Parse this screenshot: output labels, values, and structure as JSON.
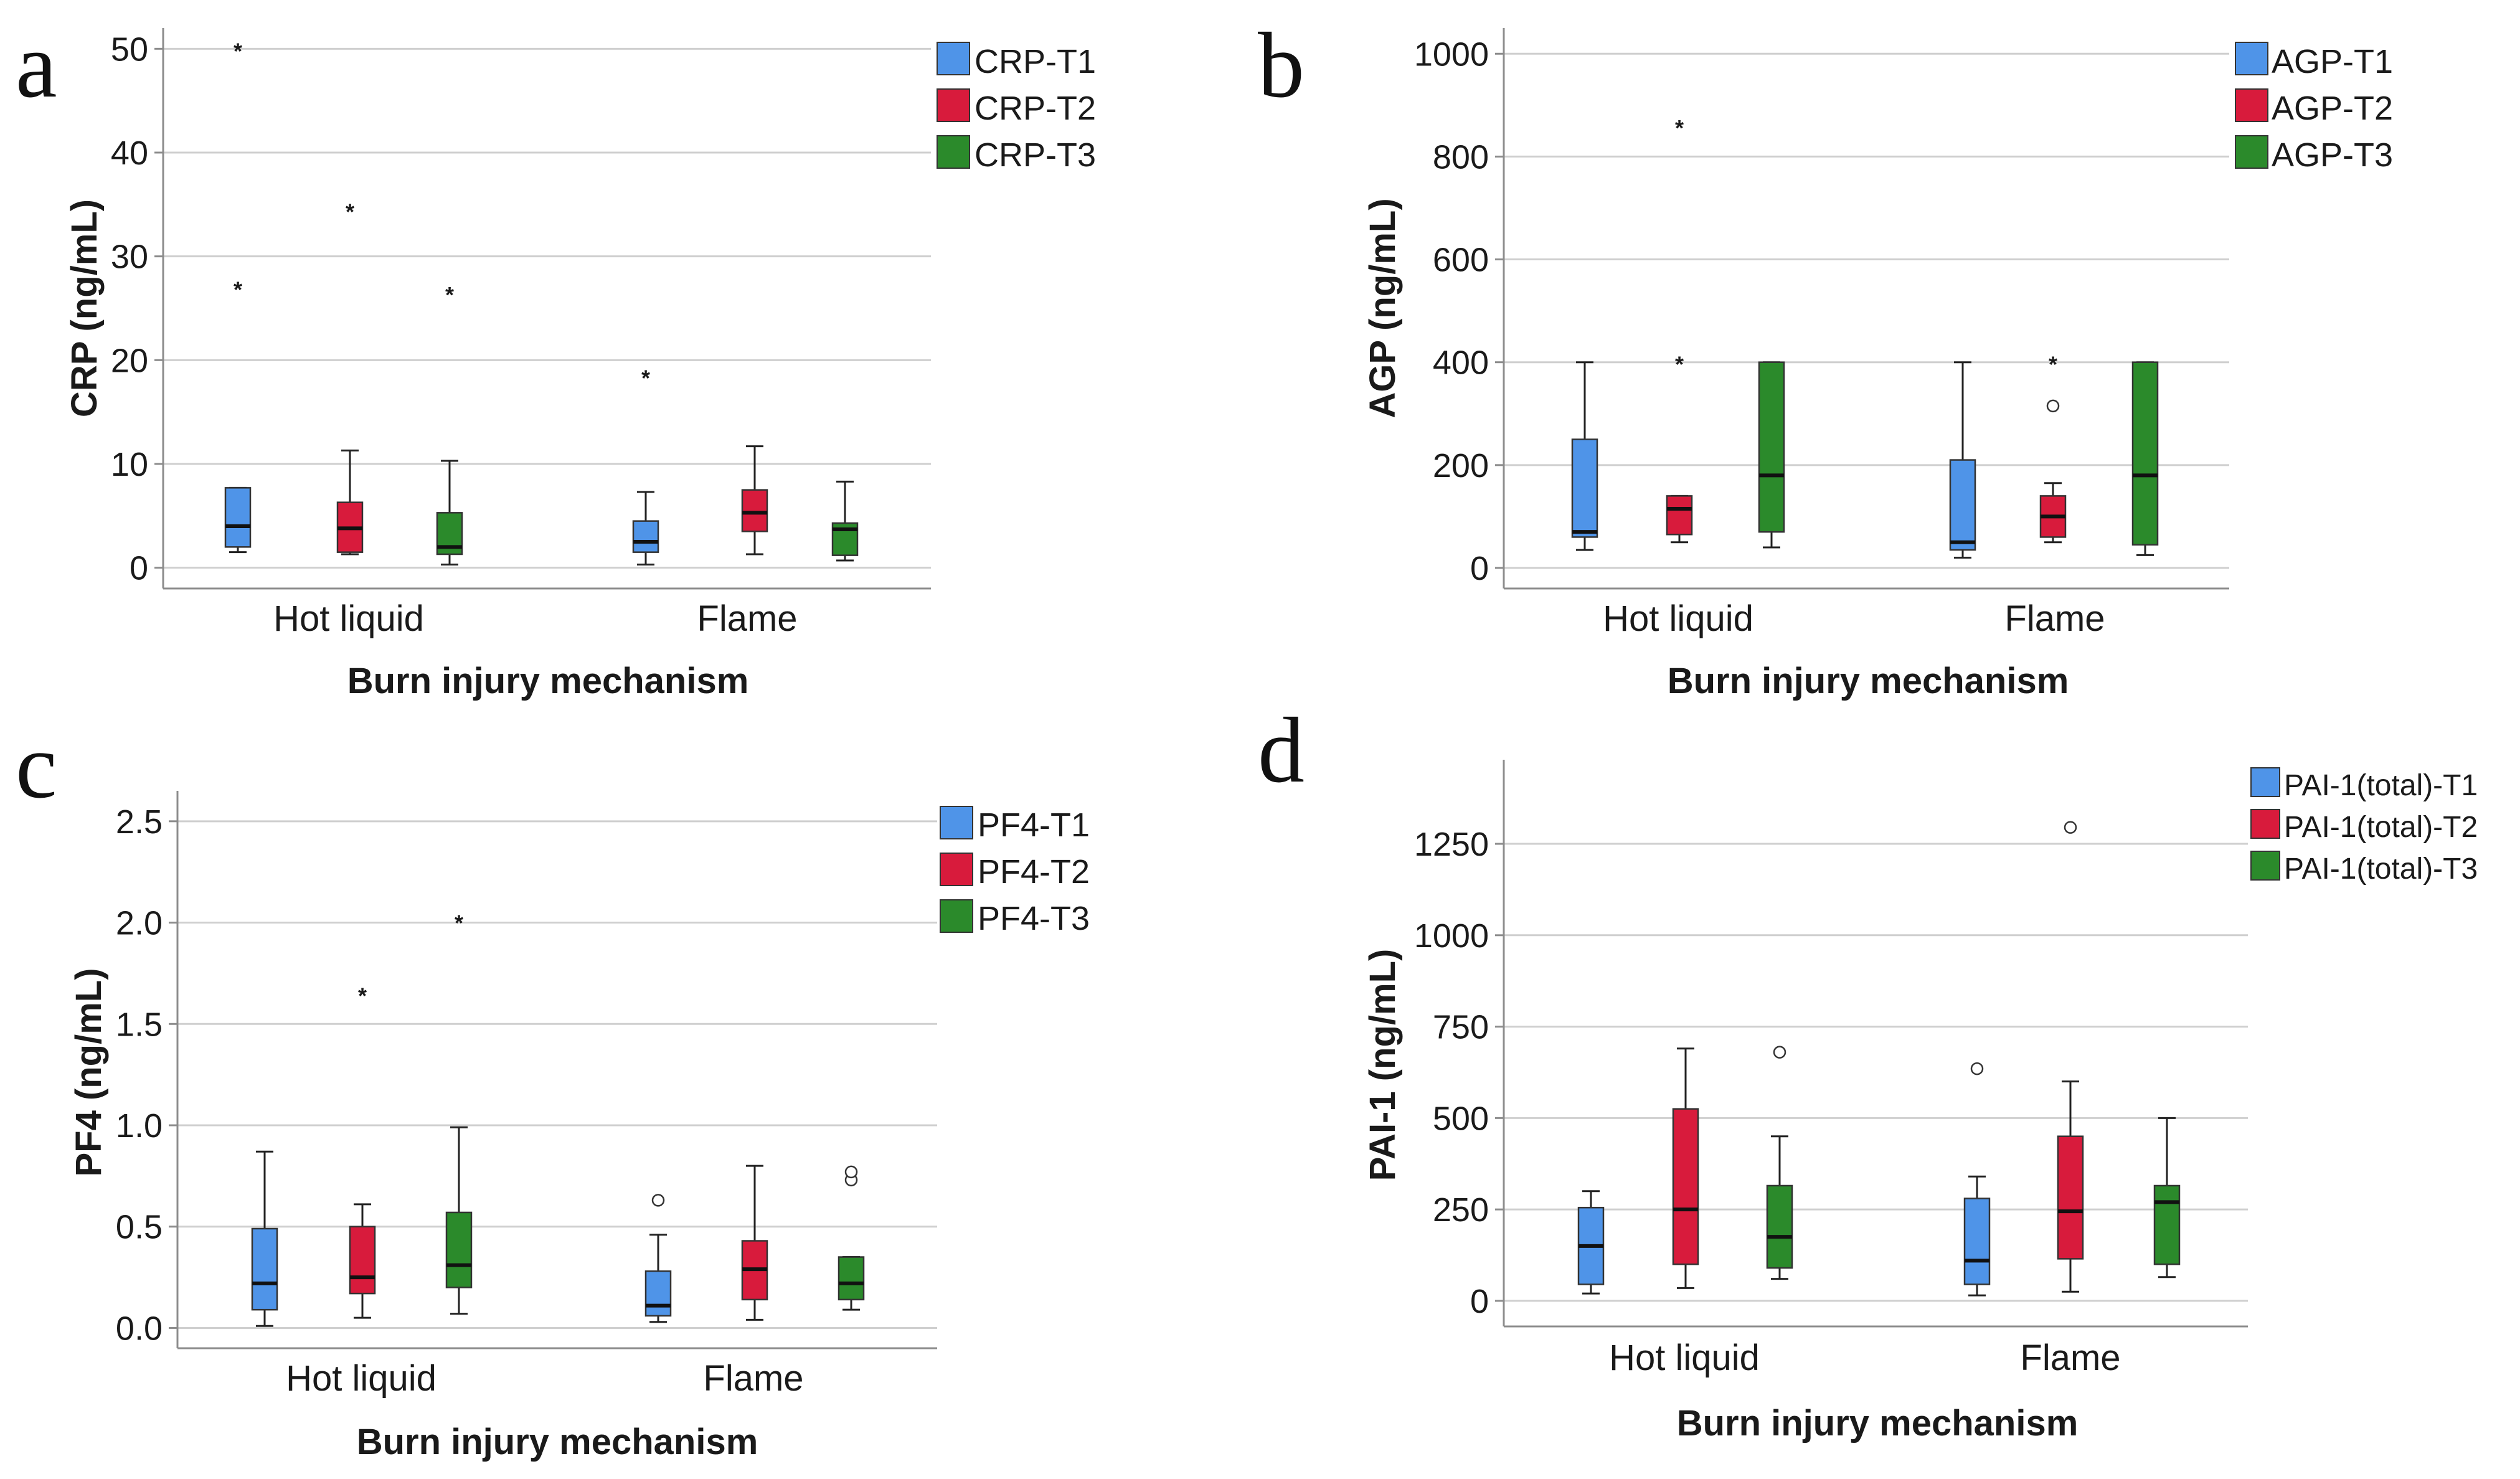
{
  "colors": {
    "T1": "#4f94e8",
    "T2": "#d81b3c",
    "T3": "#2b8a2b",
    "grid": "#cfcfcf",
    "axis": "#8c8c8c"
  },
  "chart_data": [
    {
      "type": "box",
      "panel": "a",
      "ylabel": "CRP (ng/mL)",
      "xlabel": "Burn injury mechanism",
      "categories": [
        "Hot liquid",
        "Flame"
      ],
      "ylim": [
        -2,
        52
      ],
      "yticks": [
        0,
        10,
        20,
        30,
        40,
        50
      ],
      "ytick_labels": [
        "0",
        "10",
        "20",
        "30",
        "40",
        "50"
      ],
      "legend": [
        "CRP-T1",
        "CRP-T2",
        "CRP-T3"
      ],
      "series": [
        {
          "name": "CRP-T1",
          "boxes": [
            {
              "min": 1.5,
              "q1": 2.0,
              "median": 4.0,
              "q3": 7.7,
              "max": 7.7,
              "extremes": [
                27,
                50
              ],
              "outliers": []
            },
            {
              "min": 0.3,
              "q1": 1.5,
              "median": 2.5,
              "q3": 4.5,
              "max": 7.3,
              "extremes": [
                18.5
              ],
              "outliers": []
            }
          ]
        },
        {
          "name": "CRP-T2",
          "boxes": [
            {
              "min": 1.3,
              "q1": 1.5,
              "median": 3.8,
              "q3": 6.3,
              "max": 11.3,
              "extremes": [
                34.5
              ],
              "outliers": []
            },
            {
              "min": 1.3,
              "q1": 3.5,
              "median": 5.3,
              "q3": 7.5,
              "max": 11.7,
              "extremes": [],
              "outliers": []
            }
          ]
        },
        {
          "name": "CRP-T3",
          "boxes": [
            {
              "min": 0.3,
              "q1": 1.3,
              "median": 2.0,
              "q3": 5.3,
              "max": 10.3,
              "extremes": [
                26.5
              ],
              "outliers": []
            },
            {
              "min": 0.7,
              "q1": 1.2,
              "median": 3.7,
              "q3": 4.3,
              "max": 8.3,
              "extremes": [],
              "outliers": []
            }
          ]
        }
      ]
    },
    {
      "type": "box",
      "panel": "b",
      "ylabel": "AGP (ng/mL)",
      "xlabel": "Burn injury mechanism",
      "categories": [
        "Hot liquid",
        "Flame"
      ],
      "ylim": [
        -40,
        1050
      ],
      "yticks": [
        0,
        200,
        400,
        600,
        800,
        1000
      ],
      "ytick_labels": [
        "0",
        "200",
        "400",
        "600",
        "800",
        "1000"
      ],
      "legend": [
        "AGP-T1",
        "AGP-T2",
        "AGP-T3"
      ],
      "series": [
        {
          "name": "AGP-T1",
          "boxes": [
            {
              "min": 35,
              "q1": 60,
              "median": 70,
              "q3": 250,
              "max": 400,
              "extremes": [],
              "outliers": []
            },
            {
              "min": 20,
              "q1": 35,
              "median": 50,
              "q3": 210,
              "max": 400,
              "extremes": [],
              "outliers": []
            }
          ]
        },
        {
          "name": "AGP-T2",
          "boxes": [
            {
              "min": 50,
              "q1": 65,
              "median": 115,
              "q3": 140,
              "max": 140,
              "extremes": [
                860,
                400
              ],
              "outliers": []
            },
            {
              "min": 50,
              "q1": 60,
              "median": 100,
              "q3": 140,
              "max": 165,
              "extremes": [
                400
              ],
              "outliers": [
                315
              ]
            }
          ]
        },
        {
          "name": "AGP-T3",
          "boxes": [
            {
              "min": 40,
              "q1": 70,
              "median": 180,
              "q3": 400,
              "max": 400,
              "extremes": [],
              "outliers": []
            },
            {
              "min": 25,
              "q1": 45,
              "median": 180,
              "q3": 400,
              "max": 400,
              "extremes": [],
              "outliers": []
            }
          ]
        }
      ]
    },
    {
      "type": "box",
      "panel": "c",
      "ylabel": "PF4 (ng/mL)",
      "xlabel": "Burn injury mechanism",
      "categories": [
        "Hot liquid",
        "Flame"
      ],
      "ylim": [
        -0.1,
        2.65
      ],
      "yticks": [
        0,
        0.5,
        1.0,
        1.5,
        2.0,
        2.5
      ],
      "ytick_labels": [
        "0.0",
        "0.5",
        "1.0",
        "1.5",
        "2.0",
        "2.5"
      ],
      "legend": [
        "PF4-T1",
        "PF4-T2",
        "PF4-T3"
      ],
      "series": [
        {
          "name": "PF4-T1",
          "boxes": [
            {
              "min": 0.01,
              "q1": 0.09,
              "median": 0.22,
              "q3": 0.49,
              "max": 0.87,
              "extremes": [],
              "outliers": []
            },
            {
              "min": 0.03,
              "q1": 0.06,
              "median": 0.11,
              "q3": 0.28,
              "max": 0.46,
              "extremes": [],
              "outliers": [
                0.63
              ]
            }
          ]
        },
        {
          "name": "PF4-T2",
          "boxes": [
            {
              "min": 0.05,
              "q1": 0.17,
              "median": 0.25,
              "q3": 0.5,
              "max": 0.61,
              "extremes": [
                1.65
              ],
              "outliers": []
            },
            {
              "min": 0.04,
              "q1": 0.14,
              "median": 0.29,
              "q3": 0.43,
              "max": 0.8,
              "extremes": [],
              "outliers": []
            }
          ]
        },
        {
          "name": "PF4-T3",
          "boxes": [
            {
              "min": 0.07,
              "q1": 0.2,
              "median": 0.31,
              "q3": 0.57,
              "max": 0.99,
              "extremes": [
                2.01
              ],
              "outliers": []
            },
            {
              "min": 0.09,
              "q1": 0.14,
              "median": 0.22,
              "q3": 0.35,
              "max": 0.35,
              "extremes": [],
              "outliers": [
                0.73,
                0.77
              ]
            }
          ]
        }
      ]
    },
    {
      "type": "box",
      "panel": "d",
      "ylabel": "PAI-1 (ng/mL)",
      "xlabel": "Burn injury mechanism",
      "categories": [
        "Hot liquid",
        "Flame"
      ],
      "ylim": [
        -70,
        1480
      ],
      "yticks": [
        0,
        250,
        500,
        750,
        1000,
        1250
      ],
      "ytick_labels": [
        "0",
        "250",
        "500",
        "750",
        "1000",
        "1250"
      ],
      "legend": [
        "PAI-1(total)-T1",
        "PAI-1(total)-T2",
        "PAI-1(total)-T3"
      ],
      "series": [
        {
          "name": "PAI-1(total)-T1",
          "boxes": [
            {
              "min": 20,
              "q1": 45,
              "median": 150,
              "q3": 255,
              "max": 300,
              "extremes": [],
              "outliers": []
            },
            {
              "min": 15,
              "q1": 45,
              "median": 110,
              "q3": 280,
              "max": 340,
              "extremes": [],
              "outliers": [
                635
              ]
            }
          ]
        },
        {
          "name": "PAI-1(total)-T2",
          "boxes": [
            {
              "min": 35,
              "q1": 100,
              "median": 250,
              "q3": 525,
              "max": 690,
              "extremes": [],
              "outliers": []
            },
            {
              "min": 25,
              "q1": 115,
              "median": 245,
              "q3": 450,
              "max": 600,
              "extremes": [],
              "outliers": [
                1295
              ]
            }
          ]
        },
        {
          "name": "PAI-1(total)-T3",
          "boxes": [
            {
              "min": 60,
              "q1": 90,
              "median": 175,
              "q3": 315,
              "max": 450,
              "extremes": [],
              "outliers": [
                680
              ]
            },
            {
              "min": 65,
              "q1": 100,
              "median": 270,
              "q3": 315,
              "max": 500,
              "extremes": [],
              "outliers": []
            }
          ]
        }
      ]
    }
  ]
}
